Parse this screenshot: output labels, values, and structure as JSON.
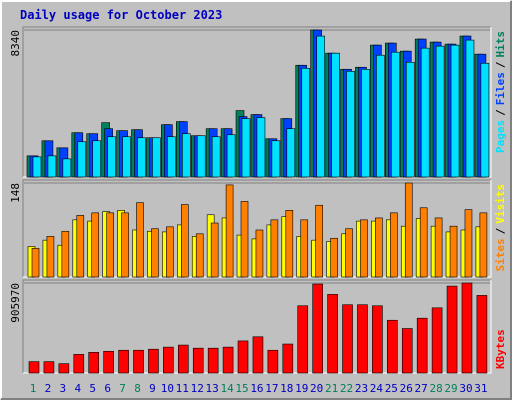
{
  "title": "Daily usage for October 2023",
  "chart_data": [
    {
      "type": "bar",
      "legend_separator": "/",
      "ylim": [
        0,
        8340
      ],
      "yticks": [
        8340
      ],
      "series": [
        {
          "name": "Hits",
          "color": "#00805c",
          "values": [
            1200,
            2056,
            1656,
            2513,
            2456,
            3084,
            2627,
            2684,
            2227,
            2970,
            3141,
            2342,
            2741,
            2741,
            3770,
            3541,
            2170,
            3313,
            6340,
            8340,
            7026,
            6112,
            6226,
            7483,
            7597,
            7140,
            7826,
            7654,
            7540,
            7997,
            6969
          ]
        },
        {
          "name": "Files",
          "color": "#0040ff",
          "values": [
            1200,
            2056,
            1656,
            2513,
            2456,
            2741,
            2627,
            2684,
            2227,
            2970,
            3141,
            2342,
            2741,
            2741,
            3427,
            3541,
            2170,
            3313,
            6340,
            8340,
            7026,
            6112,
            6226,
            7483,
            7597,
            7140,
            7826,
            7654,
            7540,
            7997,
            6969
          ]
        },
        {
          "name": "Pages",
          "color": "#00e0ff",
          "values": [
            1142,
            1199,
            1028,
            1999,
            2056,
            2284,
            2284,
            2227,
            2227,
            2284,
            2455,
            2341,
            2284,
            2398,
            3312,
            3369,
            2056,
            2741,
            6167,
            7994,
            7023,
            5996,
            6110,
            6909,
            7080,
            6509,
            7309,
            7423,
            7480,
            7766,
            6452
          ]
        }
      ]
    },
    {
      "type": "bar",
      "legend_separator": "/",
      "ylim": [
        0,
        148
      ],
      "yticks": [
        148
      ],
      "series": [
        {
          "name": "Visits",
          "color": "#ffff00",
          "values": [
            48,
            58,
            50,
            90,
            88,
            103,
            105,
            74,
            72,
            71,
            82,
            64,
            98,
            93,
            66,
            60,
            82,
            95,
            64,
            58,
            56,
            68,
            88,
            88,
            90,
            80,
            92,
            80,
            71,
            74,
            79
          ]
        },
        {
          "name": "Sites",
          "color": "#ff8000",
          "values": [
            45,
            64,
            72,
            97,
            101,
            101,
            101,
            117,
            76,
            79,
            114,
            68,
            85,
            145,
            119,
            74,
            90,
            105,
            90,
            113,
            61,
            76,
            90,
            93,
            101,
            148,
            109,
            93,
            80,
            106,
            101
          ]
        }
      ]
    },
    {
      "type": "bar",
      "ylim": [
        0,
        905970
      ],
      "yticks": [
        905970
      ],
      "categories": [
        "1",
        "2",
        "3",
        "4",
        "5",
        "6",
        "7",
        "8",
        "9",
        "10",
        "11",
        "12",
        "13",
        "14",
        "15",
        "16",
        "17",
        "18",
        "19",
        "20",
        "21",
        "22",
        "23",
        "24",
        "25",
        "26",
        "27",
        "28",
        "29",
        "30",
        "31"
      ],
      "category_colors": [
        "#00805c",
        "#0000c0",
        "#0000c0",
        "#0000c0",
        "#0000c0",
        "#0000c0",
        "#00805c",
        "#00805c",
        "#0000c0",
        "#0000c0",
        "#0000c0",
        "#0000c0",
        "#0000c0",
        "#00805c",
        "#00805c",
        "#0000c0",
        "#0000c0",
        "#0000c0",
        "#0000c0",
        "#0000c0",
        "#00805c",
        "#00805c",
        "#0000c0",
        "#0000c0",
        "#0000c0",
        "#0000c0",
        "#0000c0",
        "#00805c",
        "#00805c",
        "#0000c0",
        "#0000c0"
      ],
      "series": [
        {
          "name": "KBytes",
          "color": "#ff0000",
          "values": [
            114543,
            114543,
            93717,
            187434,
            208260,
            218673,
            229086,
            229086,
            239499,
            260325,
            281151,
            249912,
            249912,
            260325,
            322803,
            364455,
            229086,
            291564,
            676845,
            895518,
            791388,
            687258,
            687258,
            676845,
            531063,
            447759,
            551889,
            656019,
            874692,
            905970,
            780975
          ]
        }
      ]
    }
  ]
}
